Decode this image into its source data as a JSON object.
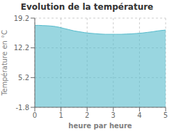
{
  "chart_data": {
    "type": "area",
    "title": "Evolution de la température",
    "xlabel": "heure par heure",
    "ylabel": "Température en °C",
    "x": [
      0.0,
      0.15,
      0.3,
      0.5,
      0.7,
      0.9,
      1.1,
      1.3,
      1.5,
      1.7,
      1.9,
      2.1,
      2.3,
      2.5,
      2.7,
      2.9,
      3.1,
      3.3,
      3.5,
      3.7,
      3.9,
      4.1,
      4.3,
      4.5,
      4.7,
      5.0
    ],
    "values": [
      17.5,
      17.5,
      17.45,
      17.4,
      17.3,
      17.1,
      16.8,
      16.5,
      16.2,
      16.0,
      15.8,
      15.65,
      15.55,
      15.45,
      15.4,
      15.4,
      15.4,
      15.4,
      15.45,
      15.5,
      15.6,
      15.7,
      15.85,
      16.0,
      16.2,
      16.4
    ],
    "color": "#55bbcc",
    "xlim": [
      0,
      5
    ],
    "ylim": [
      -1.8,
      19.2
    ],
    "xticks": [
      0,
      1,
      2,
      3,
      4,
      5
    ],
    "yticks": [
      -1.8,
      5.2,
      12.2,
      19.2
    ],
    "grid": true
  }
}
